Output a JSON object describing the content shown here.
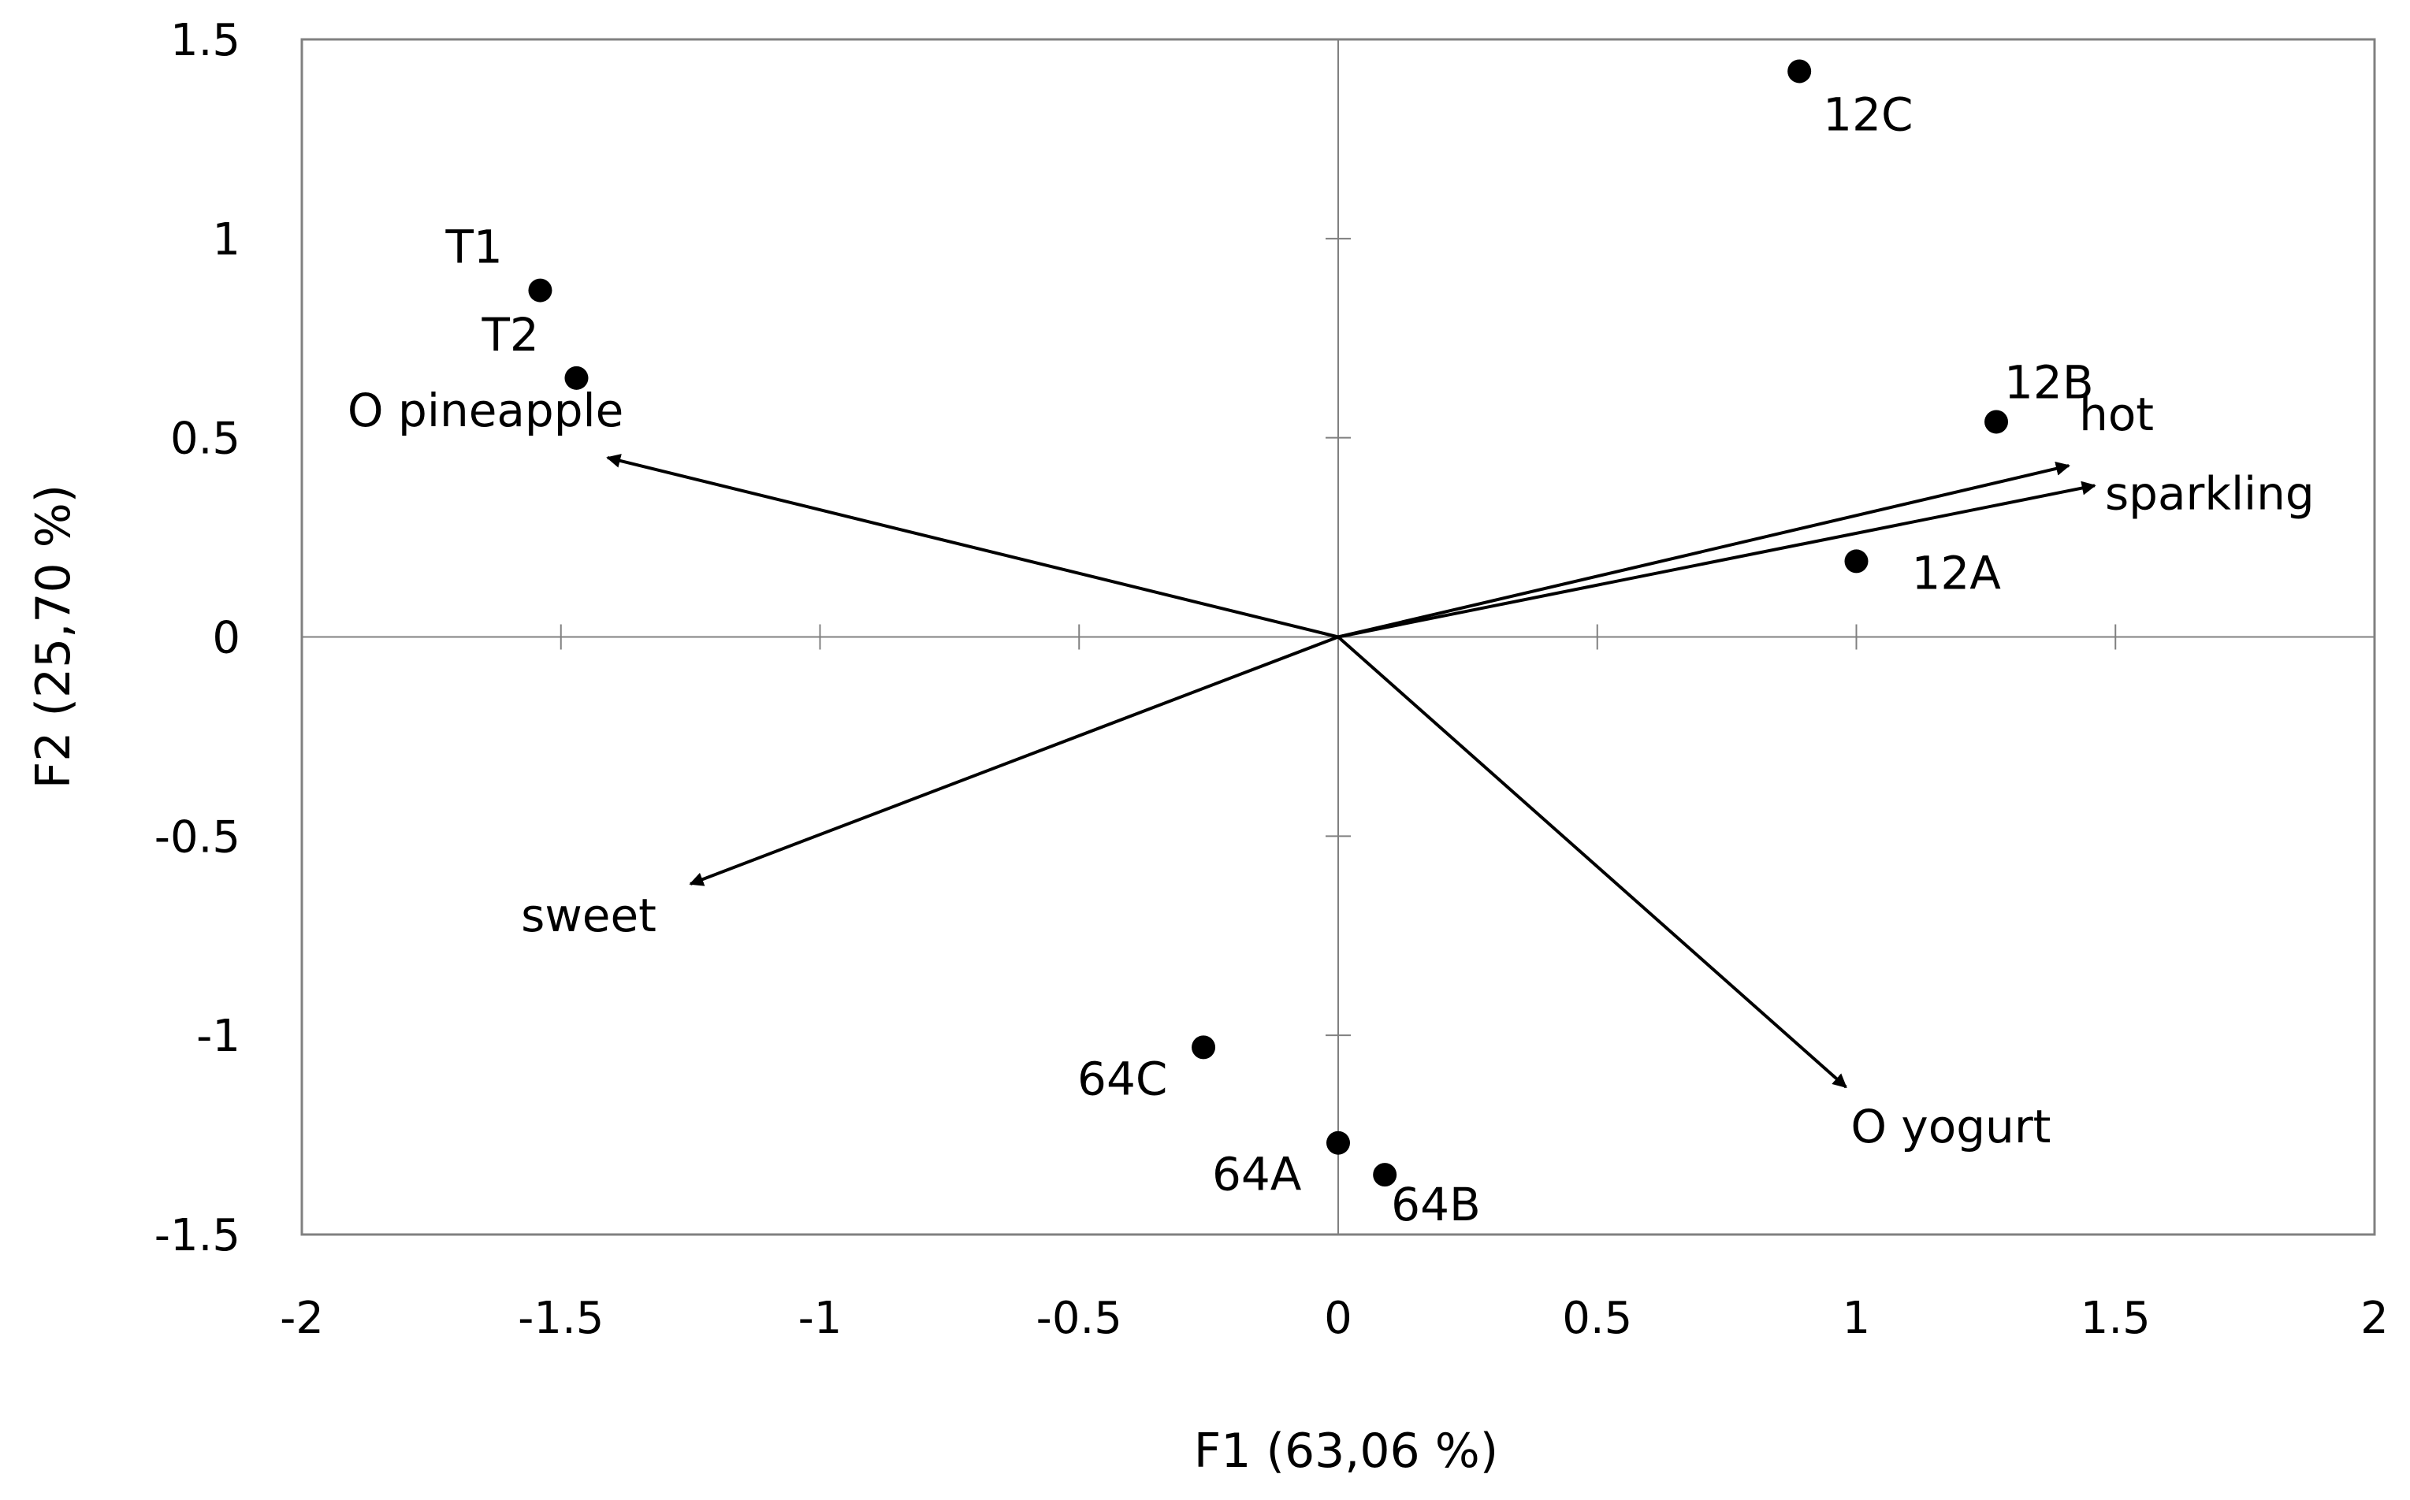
{
  "chart_data": {
    "type": "scatter",
    "title": "",
    "xlabel": "F1 (63,06 %)",
    "ylabel": "F2 (25,70 %)",
    "xlim": [
      -2,
      2
    ],
    "ylim": [
      -1.5,
      1.5
    ],
    "x_ticks": [
      "-2",
      "-1.5",
      "-1",
      "-0.5",
      "0",
      "0.5",
      "1",
      "1.5",
      "2"
    ],
    "y_ticks": [
      "-1.5",
      "-1",
      "-0.5",
      "0",
      "0.5",
      "1",
      "1.5"
    ],
    "points": [
      {
        "label": "12C",
        "x": 0.89,
        "y": 1.42
      },
      {
        "label": "T1",
        "x": -1.54,
        "y": 0.87
      },
      {
        "label": "T2",
        "x": -1.47,
        "y": 0.65
      },
      {
        "label": "12B",
        "x": 1.27,
        "y": 0.54
      },
      {
        "label": "12A",
        "x": 1.0,
        "y": 0.19
      },
      {
        "label": "64C",
        "x": -0.26,
        "y": -1.03
      },
      {
        "label": "64A",
        "x": 0.0,
        "y": -1.27
      },
      {
        "label": "64B",
        "x": 0.09,
        "y": -1.35
      }
    ],
    "vectors": [
      {
        "label": "O pineapple",
        "x": -1.41,
        "y": 0.45
      },
      {
        "label": "hot",
        "x": 1.41,
        "y": 0.43
      },
      {
        "label": "sparkling",
        "x": 1.46,
        "y": 0.38
      },
      {
        "label": "sweet",
        "x": -1.25,
        "y": -0.62
      },
      {
        "label": "O yogurt",
        "x": 0.98,
        "y": -1.13
      }
    ]
  }
}
